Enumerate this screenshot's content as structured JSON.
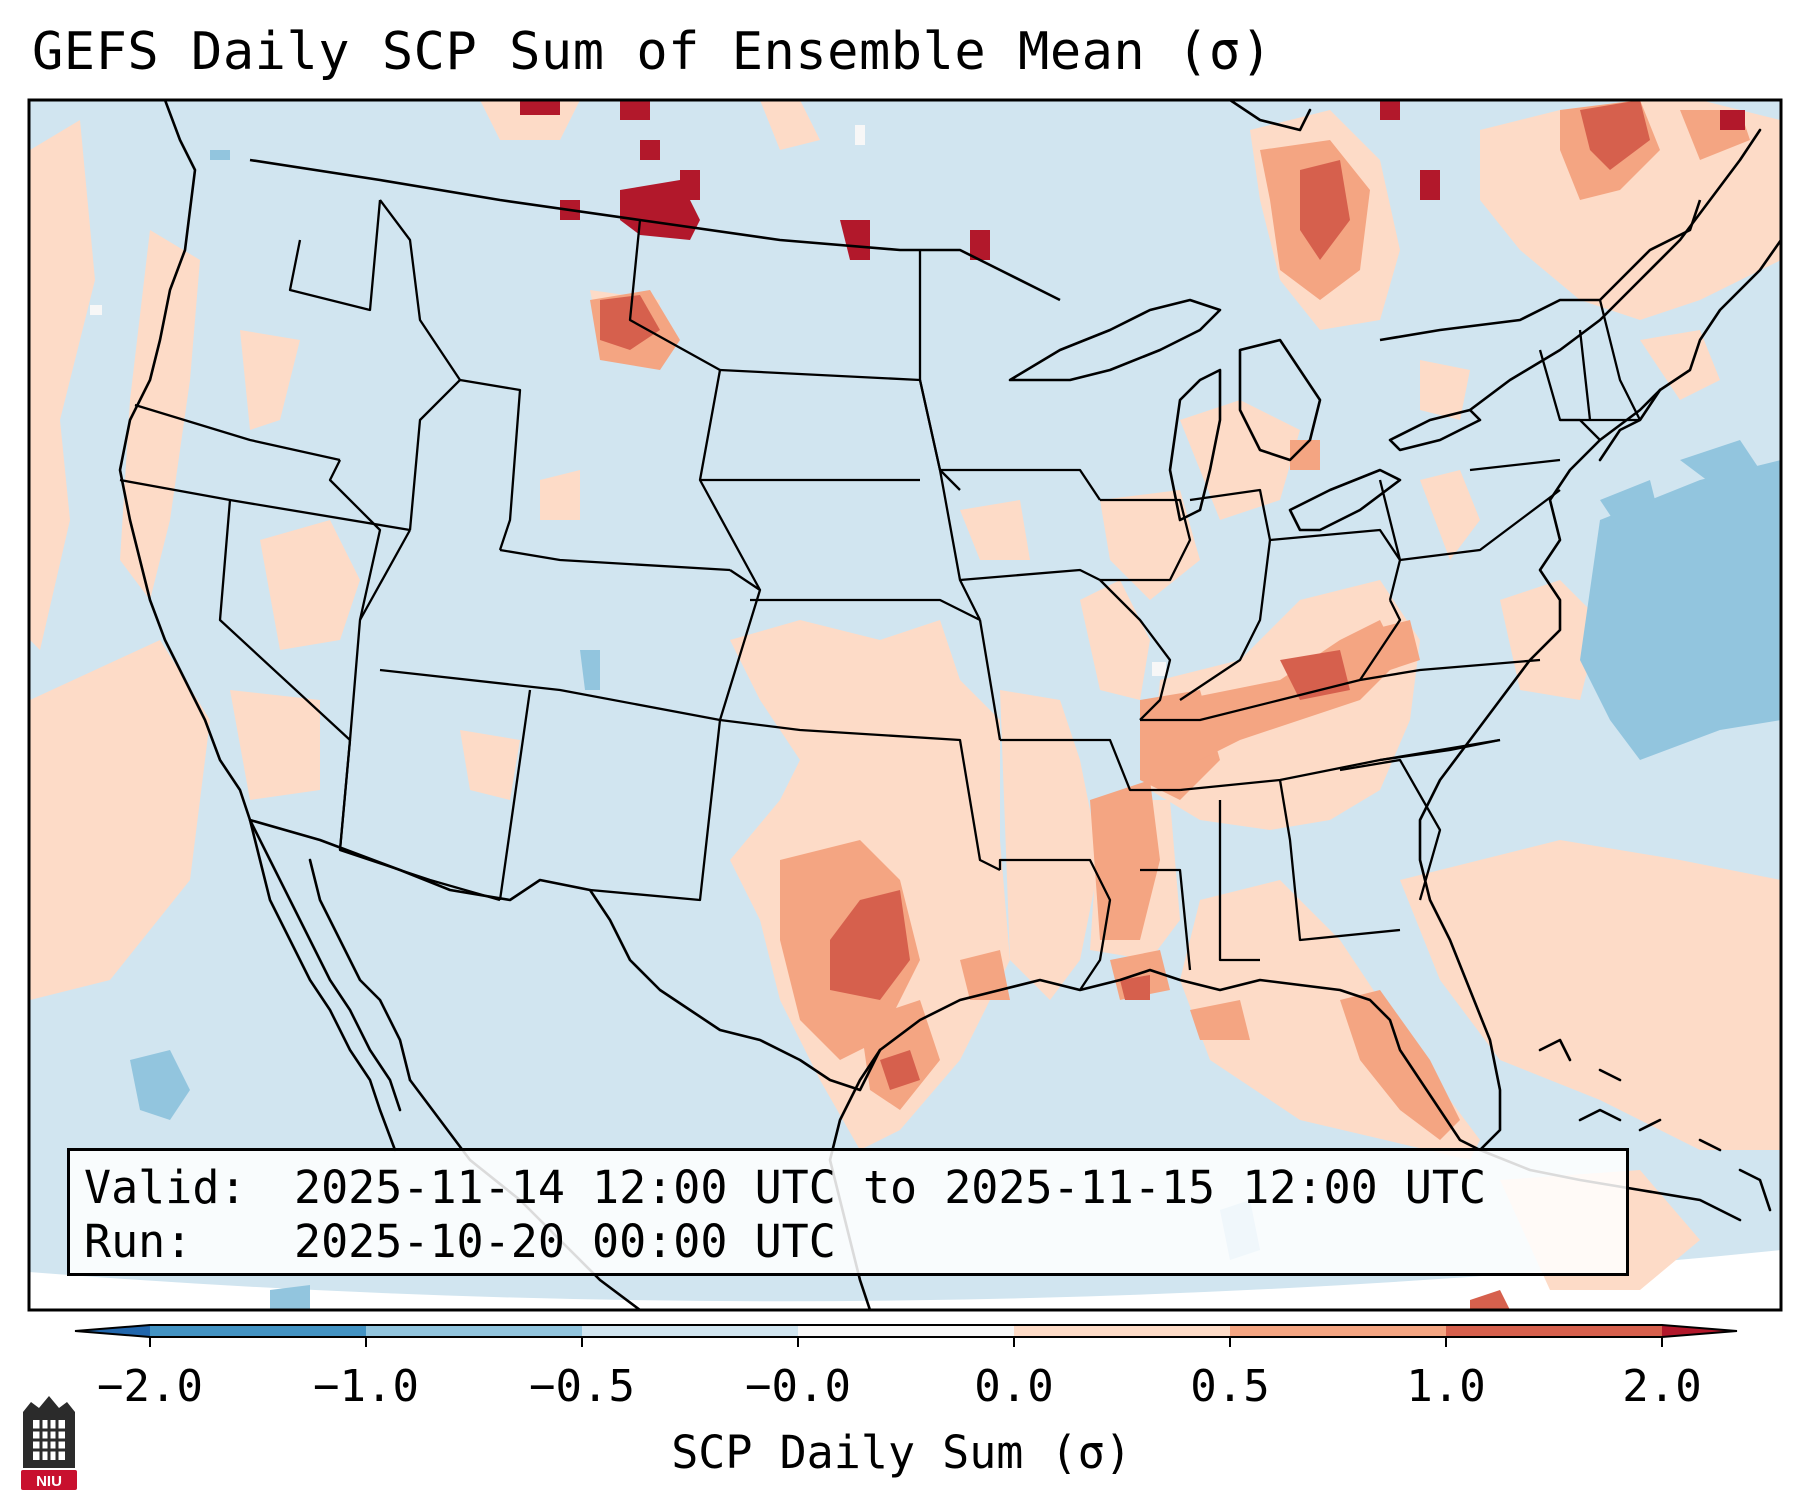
{
  "title": "GEFS Daily SCP Sum of Ensemble Mean (σ)",
  "info": {
    "valid_label": "Valid:",
    "valid_value": "2025-11-14 12:00 UTC to 2025-11-15 12:00 UTC",
    "run_label": "Run:",
    "run_value": "2025-10-20 00:00 UTC"
  },
  "colorbar": {
    "label": "SCP Daily Sum (σ)",
    "ticks": [
      "−2.0",
      "−1.0",
      "−0.5",
      "−0.0",
      "0.0",
      "0.5",
      "1.0",
      "2.0"
    ],
    "bins": [
      {
        "from": -2.0,
        "to": -1.0,
        "color": "#4393c3"
      },
      {
        "from": -1.0,
        "to": -0.5,
        "color": "#92c5de"
      },
      {
        "from": -0.5,
        "to": -0.0,
        "color": "#d1e5f0"
      },
      {
        "from": -0.0,
        "to": 0.0,
        "color": "#f7f7f7"
      },
      {
        "from": 0.0,
        "to": 0.5,
        "color": "#fddbc7"
      },
      {
        "from": 0.5,
        "to": 1.0,
        "color": "#f4a582"
      },
      {
        "from": 1.0,
        "to": 2.0,
        "color": "#d6604d"
      }
    ],
    "under_color": "#2166ac",
    "over_color": "#b2182b"
  },
  "map": {
    "background_color": "#d1e5f0",
    "outside_color": "#ffffff",
    "border_color": "#000000"
  },
  "logo": {
    "text": "NIU",
    "color": "#c8102e"
  }
}
